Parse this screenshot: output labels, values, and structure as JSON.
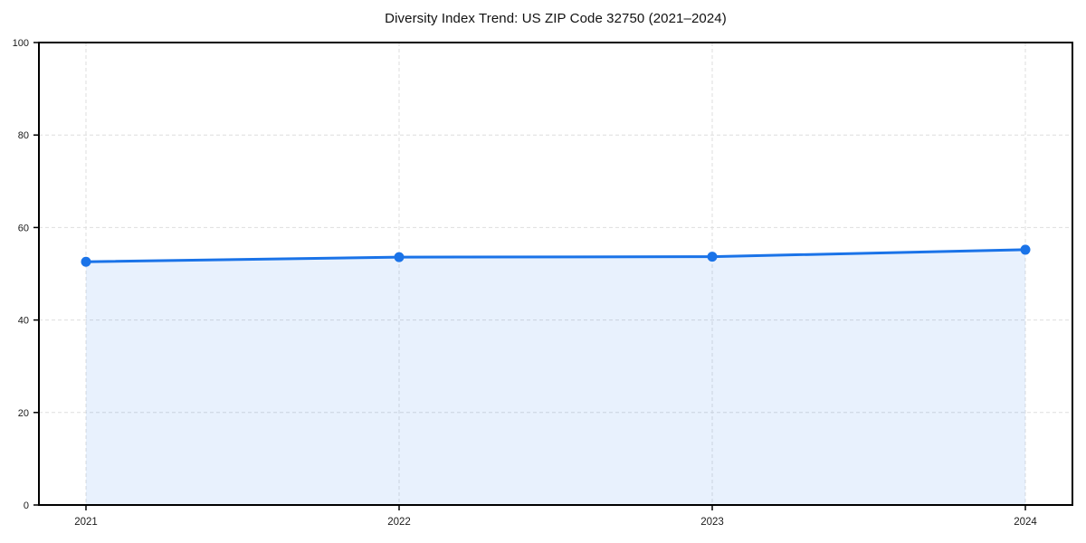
{
  "title": "Diversity Index Trend: US ZIP Code 32750 (2021–2024)",
  "chart_data": {
    "type": "line",
    "categories": [
      "2021",
      "2022",
      "2023",
      "2024"
    ],
    "values": [
      52.6,
      53.6,
      53.7,
      55.2
    ],
    "title": "Diversity Index Trend: US ZIP Code 32750 (2021–2024)",
    "xlabel": "",
    "ylabel": "",
    "ylim": [
      0,
      100
    ],
    "yticks": [
      0,
      20,
      40,
      60,
      80,
      100
    ],
    "grid": true,
    "grid_style": "dashed",
    "legend": false,
    "area_fill": true,
    "marker": "circle",
    "colors": {
      "line": "#1a73e8",
      "marker": "#1a73e8",
      "fill": "#1a73e8",
      "fill_opacity": 0.1,
      "grid": "#dedede",
      "spine": "#000000",
      "tick_label": "#1a1a1a",
      "background": "#ffffff"
    }
  }
}
